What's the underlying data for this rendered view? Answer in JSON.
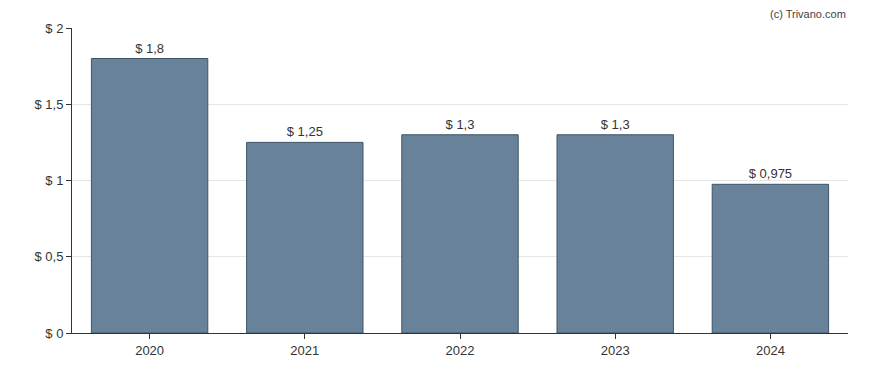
{
  "chart_data": {
    "type": "bar",
    "categories": [
      "2020",
      "2021",
      "2022",
      "2023",
      "2024"
    ],
    "values": [
      1.8,
      1.25,
      1.3,
      1.3,
      0.975
    ],
    "value_labels": [
      "$ 1,8",
      "$ 1,25",
      "$ 1,3",
      "$ 1,3",
      "$ 0,975"
    ],
    "data_labels": true,
    "color": "#68829a",
    "ylim": [
      0,
      2
    ],
    "yticks": [
      {
        "value": 0,
        "label": "$ 0"
      },
      {
        "value": 0.5,
        "label": "$ 0,5"
      },
      {
        "value": 1,
        "label": "$ 1"
      },
      {
        "value": 1.5,
        "label": "$ 1,5"
      },
      {
        "value": 2,
        "label": "$ 2"
      }
    ],
    "grid": true,
    "annotations": [
      {
        "text": "(c) Trivano.com"
      }
    ]
  }
}
